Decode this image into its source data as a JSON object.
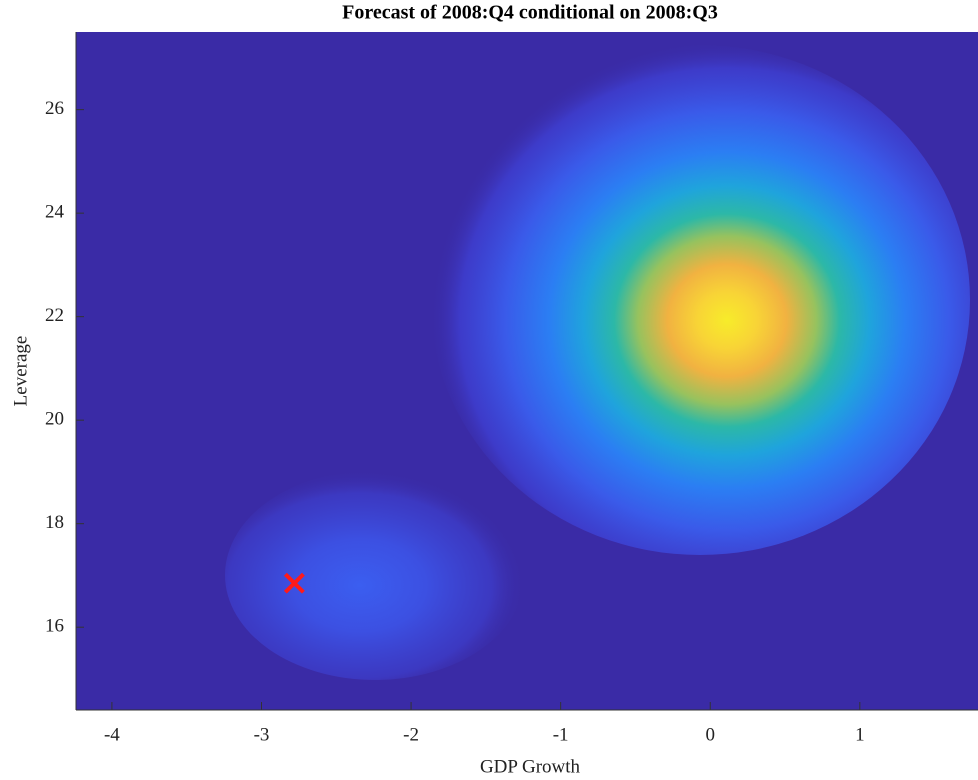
{
  "chart_data": {
    "type": "density",
    "title": "Forecast of 2008:Q4 conditional on 2008:Q3",
    "xlabel": "GDP Growth",
    "ylabel": "Leverage",
    "xlim": [
      -4.24,
      1.79
    ],
    "ylim": [
      14.4,
      27.5
    ],
    "xticks": [
      -4,
      -3,
      -2,
      -1,
      0,
      1
    ],
    "yticks": [
      16,
      18,
      20,
      22,
      24,
      26
    ],
    "background": "#3a2ba6",
    "points": {
      "x": [
        -2.78
      ],
      "y": [
        16.85
      ],
      "color": "#ff1a1a",
      "marker": "x"
    }
  }
}
